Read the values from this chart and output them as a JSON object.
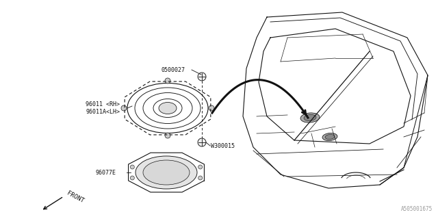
{
  "bg_color": "#ffffff",
  "line_color": "#111111",
  "gray_color": "#888888",
  "fig_width": 6.4,
  "fig_height": 3.2,
  "dpi": 100,
  "part_number": "A505001675",
  "label_0500027": "0500027",
  "label_96011rh": "96011 <RH>",
  "label_96011lh": "96011A<LH>",
  "label_w300015": "W300015",
  "label_96077e": "96077E",
  "label_front": "FRONT"
}
